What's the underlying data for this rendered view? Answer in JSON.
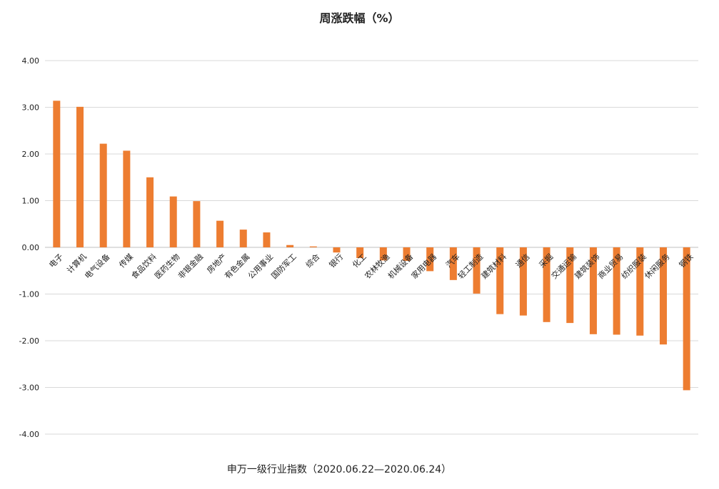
{
  "chart_data": {
    "type": "bar",
    "title": "周涨跌幅（%）",
    "xlabel": "申万一级行业指数（2020.06.22—2020.06.24）",
    "ylabel": "",
    "ylim": [
      -4,
      4
    ],
    "yticks": [
      "4.00",
      "3.00",
      "2.00",
      "1.00",
      "0.00",
      "-1.00",
      "-2.00",
      "-3.00",
      "-4.00"
    ],
    "grid": true,
    "bar_color": "#ED7D31",
    "categories": [
      "电子",
      "计算机",
      "电气设备",
      "传媒",
      "食品饮料",
      "医药生物",
      "非银金融",
      "房地产",
      "有色金属",
      "公用事业",
      "国防军工",
      "综合",
      "银行",
      "化工",
      "农林牧渔",
      "机械设备",
      "家用电器",
      "汽车",
      "轻工制造",
      "建筑材料",
      "通信",
      "采掘",
      "交通运输",
      "建筑装饰",
      "商业贸易",
      "纺织服装",
      "休闲服务",
      "钢铁"
    ],
    "values": [
      3.14,
      3.01,
      2.22,
      2.07,
      1.5,
      1.09,
      0.99,
      0.57,
      0.38,
      0.32,
      0.05,
      0.02,
      -0.11,
      -0.23,
      -0.28,
      -0.29,
      -0.51,
      -0.7,
      -0.99,
      -1.43,
      -1.46,
      -1.6,
      -1.62,
      -1.86,
      -1.87,
      -1.89,
      -2.08,
      -3.06
    ]
  }
}
